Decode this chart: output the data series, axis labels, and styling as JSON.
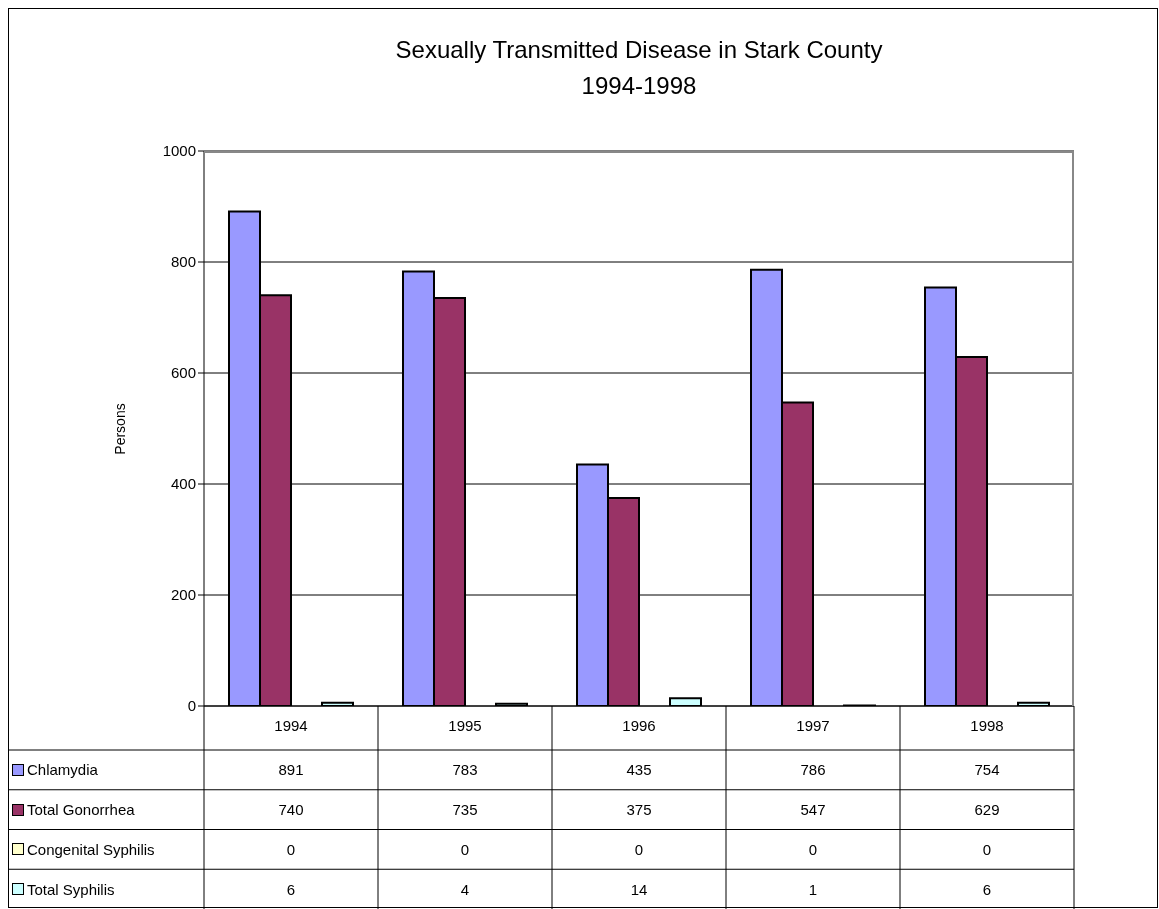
{
  "chart_data": {
    "type": "bar",
    "title": "Sexually Transmitted Disease in Stark County",
    "subtitle": "1994-1998",
    "ylabel": "Persons",
    "categories": [
      "1994",
      "1995",
      "1996",
      "1997",
      "1998"
    ],
    "series": [
      {
        "name": "Chlamydia",
        "color": "#9999ff",
        "values": [
          891,
          783,
          435,
          786,
          754
        ]
      },
      {
        "name": "Total Gonorrhea",
        "color": "#993366",
        "values": [
          740,
          735,
          375,
          547,
          629
        ]
      },
      {
        "name": "Congenital Syphilis",
        "color": "#ffffcc",
        "values": [
          0,
          0,
          0,
          0,
          0
        ]
      },
      {
        "name": "Total Syphilis",
        "color": "#ccffff",
        "values": [
          6,
          4,
          14,
          1,
          6
        ]
      }
    ],
    "ylim": [
      0,
      1000
    ],
    "yticks": [
      0,
      200,
      400,
      600,
      800,
      1000
    ],
    "grid": "y",
    "legend": "bottom",
    "data_labels": true
  }
}
